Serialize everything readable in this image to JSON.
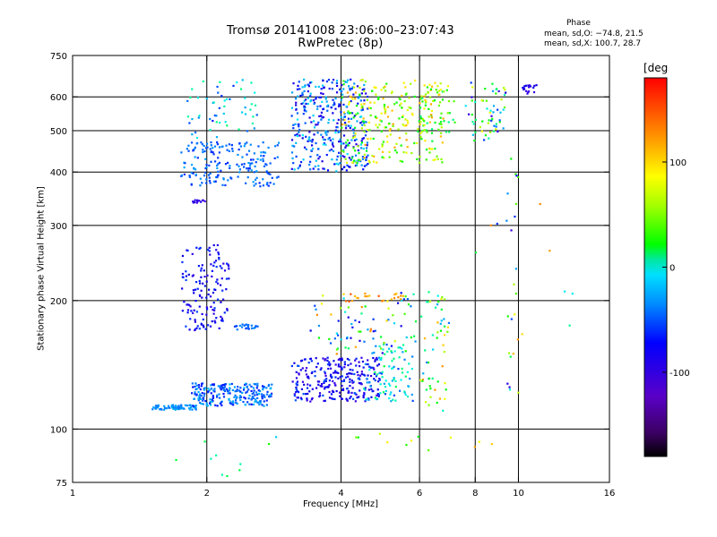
{
  "header": {
    "title_line1": "Tromsø 20141008 23:06:00–23:07:43",
    "title_line2": "RwPretec (8p)",
    "phase_heading": "Phase",
    "phase_o": "mean, sd,O: −74.8, 21.5",
    "phase_x": "mean, sd,X: 100.7, 28.7"
  },
  "chart_data": {
    "type": "scatter",
    "title": "Tromsø 20141008 23:06:00–23:07:43",
    "subtitle": "RwPretec (8p)",
    "xlabel": "Frequency [MHz]",
    "ylabel": "Stationary phase Virtual Height [km]",
    "x_scale": "log",
    "y_scale": "log",
    "xlim": [
      1,
      16
    ],
    "ylim": [
      75,
      750
    ],
    "x_ticks": [
      1,
      2,
      4,
      6,
      8,
      10,
      16
    ],
    "y_ticks": [
      75,
      100,
      200,
      300,
      400,
      500,
      600,
      750
    ],
    "x_gridlines": [
      2,
      4,
      6,
      8,
      10
    ],
    "y_gridlines": [
      100,
      200,
      300,
      400,
      500,
      600
    ],
    "colorbar": {
      "label": "[deg",
      "range": [
        -180,
        180
      ],
      "ticks": [
        -100,
        0,
        100
      ],
      "colormap": "rainbow"
    },
    "clusters": [
      {
        "x": [
          1.5,
          1.9
        ],
        "y": [
          111,
          114
        ],
        "phase": [
          -45,
          -25
        ],
        "n": 70
      },
      {
        "x": [
          1.85,
          2.8
        ],
        "y": [
          113,
          128
        ],
        "phase": [
          -70,
          -20
        ],
        "n": 230
      },
      {
        "x": [
          1.75,
          2.25
        ],
        "y": [
          170,
          270
        ],
        "phase": [
          -100,
          -55
        ],
        "n": 140
      },
      {
        "x": [
          2.3,
          2.6
        ],
        "y": [
          171,
          176
        ],
        "phase": [
          -60,
          -35
        ],
        "n": 22
      },
      {
        "x": [
          1.75,
          2.9
        ],
        "y": [
          370,
          470
        ],
        "phase": [
          -65,
          -30
        ],
        "n": 190
      },
      {
        "x": [
          1.8,
          2.6
        ],
        "y": [
          480,
          660
        ],
        "phase": [
          -70,
          30
        ],
        "n": 55
      },
      {
        "x": [
          1.85,
          2.0
        ],
        "y": [
          339,
          344
        ],
        "phase": [
          -110,
          -90
        ],
        "n": 14
      },
      {
        "x": [
          3.1,
          4.9
        ],
        "y": [
          116,
          147
        ],
        "phase": [
          -110,
          -50
        ],
        "n": 270
      },
      {
        "x": [
          4.5,
          5.8
        ],
        "y": [
          116,
          160
        ],
        "phase": [
          -60,
          40
        ],
        "n": 90
      },
      {
        "x": [
          3.4,
          5.9
        ],
        "y": [
          150,
          210
        ],
        "phase": [
          -100,
          150
        ],
        "n": 80
      },
      {
        "x": [
          3.8,
          5.6
        ],
        "y": [
          199,
          208
        ],
        "phase": [
          120,
          160
        ],
        "n": 25
      },
      {
        "x": [
          3.1,
          4.6
        ],
        "y": [
          400,
          660
        ],
        "phase": [
          -100,
          -10
        ],
        "n": 360
      },
      {
        "x": [
          4.0,
          6.8
        ],
        "y": [
          420,
          660
        ],
        "phase": [
          40,
          140
        ],
        "n": 260
      },
      {
        "x": [
          6.0,
          7.0
        ],
        "y": [
          110,
          210
        ],
        "phase": [
          -60,
          150
        ],
        "n": 55
      },
      {
        "x": [
          6.0,
          7.2
        ],
        "y": [
          470,
          640
        ],
        "phase": [
          20,
          140
        ],
        "n": 45
      },
      {
        "x": [
          7.6,
          9.4
        ],
        "y": [
          470,
          650
        ],
        "phase": [
          -120,
          120
        ],
        "n": 60
      },
      {
        "x": [
          9.4,
          10.0
        ],
        "y": [
          120,
          430
        ],
        "phase": [
          -110,
          150
        ],
        "n": 20
      },
      {
        "x": [
          10.2,
          11.0
        ],
        "y": [
          610,
          640
        ],
        "phase": [
          -110,
          -70
        ],
        "n": 18
      },
      {
        "x": [
          8.0,
          13.5
        ],
        "y": [
          140,
          370
        ],
        "phase": [
          -60,
          150
        ],
        "n": 12
      },
      {
        "x": [
          1.7,
          2.9
        ],
        "y": [
          77,
          98
        ],
        "phase": [
          -30,
          60
        ],
        "n": 10
      },
      {
        "x": [
          3.7,
          9.0
        ],
        "y": [
          88,
          98
        ],
        "phase": [
          50,
          140
        ],
        "n": 12
      }
    ]
  }
}
